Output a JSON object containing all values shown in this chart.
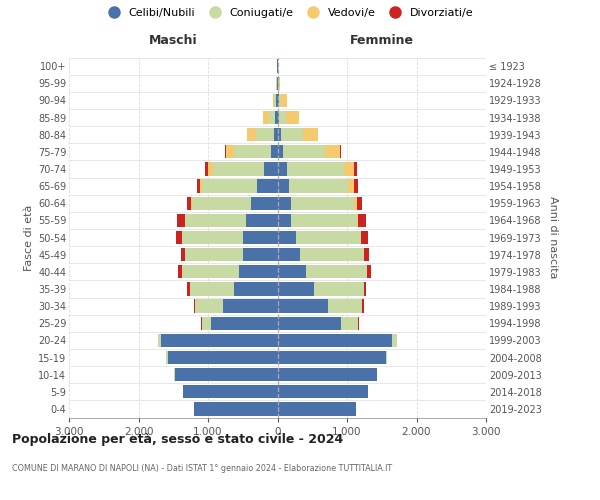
{
  "age_groups": [
    "0-4",
    "5-9",
    "10-14",
    "15-19",
    "20-24",
    "25-29",
    "30-34",
    "35-39",
    "40-44",
    "45-49",
    "50-54",
    "55-59",
    "60-64",
    "65-69",
    "70-74",
    "75-79",
    "80-84",
    "85-89",
    "90-94",
    "95-99",
    "100+"
  ],
  "birth_years": [
    "2019-2023",
    "2014-2018",
    "2009-2013",
    "2004-2008",
    "1999-2003",
    "1994-1998",
    "1989-1993",
    "1984-1988",
    "1979-1983",
    "1974-1978",
    "1969-1973",
    "1964-1968",
    "1959-1963",
    "1954-1958",
    "1949-1953",
    "1944-1948",
    "1939-1943",
    "1934-1938",
    "1929-1933",
    "1924-1928",
    "≤ 1923"
  ],
  "colors": {
    "celibi": "#4a72a8",
    "coniugati": "#c8daa4",
    "vedovi": "#f5c96e",
    "divorziati": "#cc2222"
  },
  "maschi": {
    "celibi": [
      1200,
      1360,
      1480,
      1580,
      1680,
      950,
      780,
      620,
      560,
      490,
      500,
      460,
      380,
      290,
      200,
      100,
      55,
      35,
      20,
      10,
      5
    ],
    "coniugati": [
      0,
      0,
      4,
      18,
      45,
      140,
      400,
      640,
      810,
      840,
      870,
      870,
      850,
      790,
      730,
      520,
      250,
      85,
      25,
      5,
      0
    ],
    "vedovi": [
      0,
      0,
      0,
      0,
      0,
      0,
      0,
      0,
      0,
      0,
      0,
      4,
      8,
      28,
      75,
      120,
      130,
      85,
      25,
      5,
      0
    ],
    "divorziati": [
      0,
      0,
      0,
      0,
      0,
      8,
      28,
      38,
      55,
      65,
      85,
      105,
      65,
      48,
      40,
      10,
      0,
      0,
      0,
      0,
      0
    ]
  },
  "femmine": {
    "celibi": [
      1130,
      1300,
      1430,
      1560,
      1650,
      920,
      720,
      530,
      410,
      320,
      260,
      200,
      190,
      170,
      130,
      80,
      45,
      28,
      18,
      10,
      5
    ],
    "coniugati": [
      0,
      0,
      4,
      22,
      75,
      240,
      490,
      710,
      880,
      920,
      940,
      940,
      910,
      850,
      820,
      610,
      320,
      95,
      28,
      5,
      0
    ],
    "vedovi": [
      0,
      0,
      0,
      0,
      0,
      0,
      0,
      0,
      0,
      4,
      8,
      18,
      48,
      85,
      145,
      210,
      220,
      190,
      85,
      28,
      5
    ],
    "divorziati": [
      0,
      0,
      0,
      0,
      0,
      8,
      28,
      38,
      58,
      75,
      95,
      115,
      75,
      58,
      48,
      10,
      4,
      0,
      0,
      0,
      0
    ]
  },
  "title": "Popolazione per età, sesso e stato civile - 2024",
  "subtitle": "COMUNE DI MARANO DI NAPOLI (NA) - Dati ISTAT 1° gennaio 2024 - Elaborazione TUTTITALIA.IT",
  "xlabel_left": "Maschi",
  "xlabel_right": "Femmine",
  "ylabel_left": "Fasce di età",
  "ylabel_right": "Anni di nascita",
  "xlim": 3000,
  "legend_labels": [
    "Celibi/Nubili",
    "Coniugati/e",
    "Vedovi/e",
    "Divorziati/e"
  ],
  "bg_color": "#ffffff",
  "grid_color": "#dddddd"
}
